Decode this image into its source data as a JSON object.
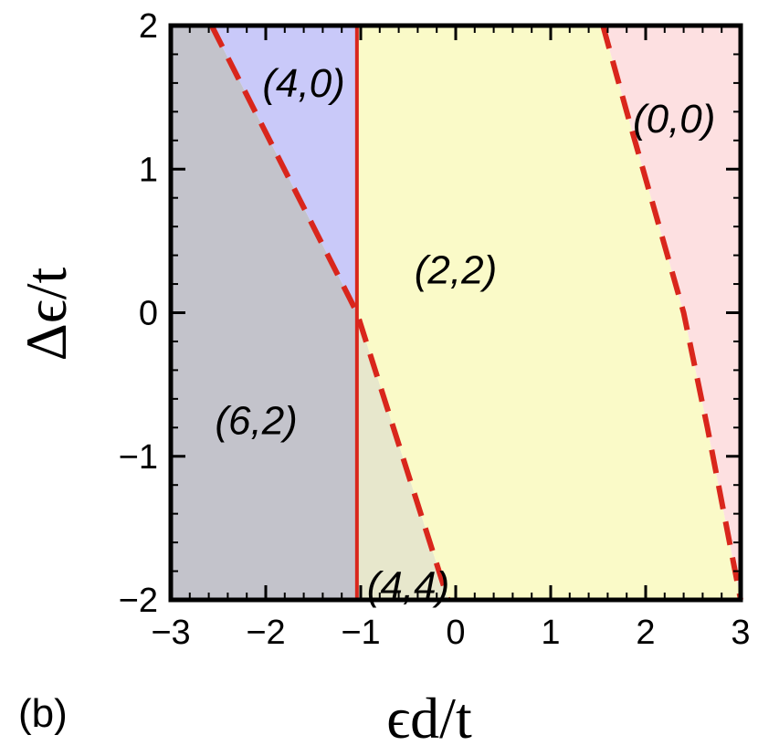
{
  "chart_data": {
    "type": "area",
    "panel_label": "(b)",
    "xlabel": "ϵd/t",
    "ylabel": "Δϵ/t",
    "xlim": [
      -3,
      3
    ],
    "ylim": [
      -2,
      2
    ],
    "x_ticks": [
      -3,
      -2,
      -1,
      0,
      1,
      2,
      3
    ],
    "y_ticks": [
      -2,
      -1,
      0,
      1,
      2
    ],
    "x_tick_labels": [
      "−3",
      "−2",
      "−1",
      "0",
      "1",
      "2",
      "3"
    ],
    "y_tick_labels": [
      "−2",
      "−1",
      "0",
      "1",
      "2"
    ],
    "grid": false,
    "regions": [
      {
        "label": "(6,2)",
        "color": "#c3c3cb",
        "label_at": [
          -2.1,
          -0.75
        ],
        "polygon": [
          [
            -3,
            -2
          ],
          [
            -1.04,
            -2
          ],
          [
            -1.04,
            0
          ],
          [
            -2.57,
            2
          ],
          [
            -3,
            2
          ]
        ]
      },
      {
        "label": "(4,0)",
        "color": "#c9c9f9",
        "label_at": [
          -1.6,
          1.6
        ],
        "polygon": [
          [
            -2.57,
            2
          ],
          [
            -1.04,
            2
          ],
          [
            -1.04,
            0
          ]
        ]
      },
      {
        "label": "(4,4)",
        "color": "#e7e7cc",
        "label_at": [
          -0.5,
          -1.9
        ],
        "polygon": [
          [
            -1.04,
            -2
          ],
          [
            -0.08,
            -2
          ],
          [
            -1.04,
            0
          ]
        ]
      },
      {
        "label": "(2,2)",
        "color": "#fafac8",
        "label_at": [
          0,
          0.3
        ],
        "polygon": [
          [
            -1.04,
            2
          ],
          [
            1.55,
            2
          ],
          [
            1.8,
            1.4
          ],
          [
            2.1,
            0.7
          ],
          [
            2.4,
            0
          ],
          [
            2.65,
            -0.8
          ],
          [
            3,
            -2
          ],
          [
            -0.08,
            -2
          ],
          [
            -1.04,
            0
          ]
        ]
      },
      {
        "label": "(0,0)",
        "color": "#fde0e1",
        "label_at": [
          2.3,
          1.35
        ],
        "polygon": [
          [
            1.55,
            2
          ],
          [
            3,
            2
          ],
          [
            3,
            -2
          ],
          [
            2.65,
            -0.8
          ],
          [
            2.4,
            0
          ],
          [
            2.1,
            0.7
          ],
          [
            1.8,
            1.4
          ]
        ]
      }
    ],
    "boundaries": [
      {
        "style": "dashed",
        "color": "#d9261c",
        "points": [
          [
            -2.57,
            2
          ],
          [
            -1.04,
            0
          ],
          [
            -0.08,
            -2
          ]
        ]
      },
      {
        "style": "solid",
        "color": "#d9261c",
        "points": [
          [
            -1.04,
            2
          ],
          [
            -1.04,
            -2
          ]
        ]
      },
      {
        "style": "dashed",
        "color": "#d9261c",
        "points": [
          [
            1.55,
            2
          ],
          [
            1.8,
            1.4
          ],
          [
            2.1,
            0.7
          ],
          [
            2.4,
            0
          ],
          [
            2.65,
            -0.8
          ],
          [
            3,
            -2
          ]
        ]
      }
    ]
  }
}
